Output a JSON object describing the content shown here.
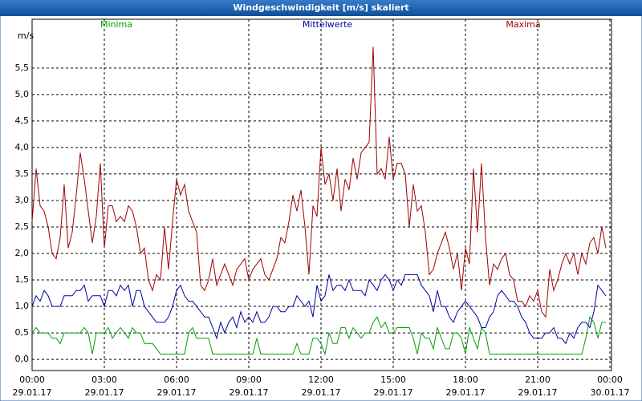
{
  "chart_data": {
    "type": "line",
    "title": "Windgeschwindigkeit [m/s] skaliert",
    "y_label": "m/s",
    "x": [
      0,
      10,
      20,
      30,
      40,
      50,
      60,
      70,
      80,
      90,
      100,
      110,
      120,
      130,
      140,
      150,
      160,
      170,
      180,
      190,
      200,
      210,
      220,
      230,
      240,
      250,
      260,
      270,
      280,
      290,
      300,
      310,
      320,
      330,
      340,
      350,
      360,
      370,
      380,
      390,
      400,
      410,
      420,
      430,
      440,
      450,
      460,
      470,
      480,
      490,
      500,
      510,
      520,
      530,
      540,
      550,
      560,
      570,
      580,
      590,
      600,
      610,
      620,
      630,
      640,
      650,
      660,
      670,
      680,
      690,
      700,
      710,
      720,
      730,
      740,
      750,
      760,
      770,
      780,
      790,
      800,
      810,
      820,
      830,
      840,
      850,
      860,
      870,
      880,
      890,
      900,
      910,
      920,
      930,
      940,
      950,
      960,
      970,
      980,
      990,
      1000,
      1010,
      1020,
      1030,
      1040,
      1050,
      1060,
      1070,
      1080,
      1090,
      1100,
      1110,
      1120,
      1130,
      1140,
      1150,
      1160,
      1170,
      1180,
      1190,
      1200,
      1210,
      1220,
      1230,
      1240,
      1250,
      1260,
      1270,
      1280,
      1290,
      1300,
      1310,
      1320,
      1330,
      1340,
      1350,
      1360,
      1370,
      1380,
      1390,
      1400,
      1410,
      1420,
      1430
    ],
    "series": [
      {
        "name": "Minima",
        "color": "#00a000",
        "values": [
          0.5,
          0.6,
          0.5,
          0.5,
          0.5,
          0.4,
          0.4,
          0.3,
          0.5,
          0.5,
          0.5,
          0.5,
          0.5,
          0.6,
          0.5,
          0.1,
          0.5,
          0.5,
          0.5,
          0.6,
          0.4,
          0.5,
          0.6,
          0.5,
          0.4,
          0.6,
          0.5,
          0.5,
          0.3,
          0.3,
          0.3,
          0.2,
          0.1,
          0.1,
          0.1,
          0.1,
          0.1,
          0.1,
          0.1,
          0.5,
          0.6,
          0.4,
          0.4,
          0.4,
          0.4,
          0.1,
          0.1,
          0.1,
          0.1,
          0.1,
          0.1,
          0.1,
          0.1,
          0.1,
          0.1,
          0.1,
          0.4,
          0.1,
          0.1,
          0.1,
          0.1,
          0.1,
          0.1,
          0.1,
          0.1,
          0.1,
          0.3,
          0.1,
          0.1,
          0.1,
          0.4,
          0.4,
          0.3,
          0.1,
          0.5,
          0.3,
          0.3,
          0.6,
          0.6,
          0.4,
          0.6,
          0.5,
          0.4,
          0.5,
          0.5,
          0.7,
          0.8,
          0.6,
          0.7,
          0.5,
          0.5,
          0.6,
          0.6,
          0.6,
          0.6,
          0.4,
          0.1,
          0.5,
          0.4,
          0.4,
          0.2,
          0.6,
          0.4,
          0.2,
          0.2,
          0.5,
          0.5,
          0.4,
          0.1,
          0.6,
          0.4,
          0.2,
          0.6,
          0.5,
          0.1,
          0.1,
          0.1,
          0.1,
          0.1,
          0.1,
          0.1,
          0.1,
          0.1,
          0.1,
          0.1,
          0.1,
          0.1,
          0.1,
          0.1,
          0.1,
          0.1,
          0.1,
          0.1,
          0.1,
          0.1,
          0.1,
          0.1,
          0.1,
          0.4,
          0.8,
          0.7,
          0.4,
          0.7,
          0.7
        ]
      },
      {
        "name": "Mittelwerte",
        "color": "#0000a0",
        "values": [
          1.0,
          1.2,
          1.1,
          1.3,
          1.2,
          1.0,
          1.0,
          1.0,
          1.2,
          1.2,
          1.2,
          1.3,
          1.3,
          1.4,
          1.1,
          1.2,
          1.2,
          1.2,
          1.0,
          1.3,
          1.3,
          1.2,
          1.4,
          1.3,
          1.4,
          1.0,
          1.3,
          1.3,
          1.0,
          0.9,
          0.8,
          0.7,
          0.7,
          0.7,
          0.8,
          1.0,
          1.3,
          1.4,
          1.2,
          1.1,
          1.1,
          1.0,
          0.9,
          0.8,
          0.8,
          0.6,
          0.4,
          0.7,
          0.5,
          0.7,
          0.8,
          0.6,
          0.9,
          0.7,
          0.8,
          0.7,
          0.9,
          0.7,
          0.7,
          0.8,
          1.0,
          1.0,
          0.9,
          0.9,
          1.0,
          1.0,
          1.2,
          1.1,
          1.0,
          1.1,
          0.8,
          1.4,
          1.1,
          1.2,
          1.6,
          1.3,
          1.4,
          1.4,
          1.3,
          1.5,
          1.3,
          1.3,
          1.3,
          1.2,
          1.5,
          1.4,
          1.3,
          1.5,
          1.6,
          1.5,
          1.3,
          1.5,
          1.4,
          1.6,
          1.6,
          1.6,
          1.6,
          1.4,
          1.3,
          1.2,
          0.9,
          1.3,
          1.0,
          1.0,
          0.8,
          0.7,
          0.9,
          1.0,
          1.1,
          1.0,
          0.9,
          0.8,
          0.6,
          0.6,
          0.8,
          0.9,
          1.2,
          1.3,
          1.2,
          1.1,
          1.1,
          1.0,
          0.8,
          0.7,
          0.5,
          0.4,
          0.4,
          0.4,
          0.5,
          0.5,
          0.6,
          0.4,
          0.4,
          0.3,
          0.5,
          0.4,
          0.6,
          0.7,
          0.7,
          0.6,
          0.9,
          1.4,
          1.3,
          1.2
        ]
      },
      {
        "name": "Maxima",
        "color": "#a00000",
        "values": [
          2.6,
          3.6,
          2.9,
          2.8,
          2.5,
          2.0,
          1.9,
          2.3,
          3.3,
          2.1,
          2.4,
          3.1,
          3.9,
          3.4,
          2.8,
          2.2,
          2.7,
          3.7,
          2.1,
          2.9,
          2.9,
          2.6,
          2.7,
          2.6,
          2.9,
          2.8,
          2.5,
          2.0,
          2.1,
          1.5,
          1.3,
          1.6,
          1.5,
          2.5,
          1.7,
          2.6,
          3.4,
          3.1,
          3.3,
          2.8,
          2.6,
          2.4,
          1.4,
          1.3,
          1.5,
          1.9,
          1.4,
          1.6,
          1.8,
          1.6,
          1.4,
          1.7,
          1.8,
          1.9,
          1.5,
          1.7,
          1.8,
          1.9,
          1.6,
          1.5,
          1.7,
          1.9,
          2.3,
          2.2,
          2.6,
          3.1,
          2.8,
          3.2,
          2.5,
          1.6,
          2.9,
          2.7,
          4.0,
          3.3,
          3.5,
          3.0,
          3.6,
          2.8,
          3.4,
          3.2,
          3.8,
          3.4,
          3.9,
          4.0,
          4.1,
          5.9,
          3.5,
          3.6,
          3.4,
          4.2,
          3.4,
          3.7,
          3.7,
          3.5,
          2.5,
          3.3,
          2.8,
          2.9,
          2.4,
          1.6,
          1.7,
          2.0,
          2.2,
          2.4,
          2.1,
          1.7,
          2.0,
          1.3,
          2.1,
          1.8,
          3.6,
          2.4,
          3.7,
          2.3,
          1.4,
          1.8,
          1.7,
          1.9,
          2.0,
          1.6,
          1.5,
          1.1,
          1.1,
          1.0,
          1.2,
          1.1,
          1.3,
          0.9,
          0.8,
          1.7,
          1.3,
          1.5,
          1.8,
          2.0,
          1.8,
          2.0,
          1.6,
          2.0,
          1.8,
          2.2,
          2.3,
          2.0,
          2.5,
          2.1
        ]
      }
    ],
    "xlim": [
      0,
      1440
    ],
    "xticks": [
      {
        "value": 0,
        "label": "00:00"
      },
      {
        "value": 180,
        "label": "03:00"
      },
      {
        "value": 360,
        "label": "06:00"
      },
      {
        "value": 540,
        "label": "09:00"
      },
      {
        "value": 720,
        "label": "12:00"
      },
      {
        "value": 900,
        "label": "15:00"
      },
      {
        "value": 1080,
        "label": "18:00"
      },
      {
        "value": 1260,
        "label": "21:00"
      },
      {
        "value": 1440,
        "label": "00:00"
      }
    ],
    "xtick_dates": [
      "29.01.17",
      "29.01.17",
      "29.01.17",
      "29.01.17",
      "29.01.17",
      "29.01.17",
      "29.01.17",
      "29.01.17",
      "30.01.17"
    ],
    "ylim": [
      -0.18,
      6.33
    ],
    "yticks": [
      {
        "value": 0,
        "label": "0,0"
      },
      {
        "value": 0.5,
        "label": "0,5"
      },
      {
        "value": 1,
        "label": "1,0"
      },
      {
        "value": 1.5,
        "label": "1,5"
      },
      {
        "value": 2,
        "label": "2,0"
      },
      {
        "value": 2.5,
        "label": "2,5"
      },
      {
        "value": 3,
        "label": "3,0"
      },
      {
        "value": 3.5,
        "label": "3,5"
      },
      {
        "value": 4,
        "label": "4,0"
      },
      {
        "value": 4.5,
        "label": "4,5"
      },
      {
        "value": 5,
        "label": "5,0"
      },
      {
        "value": 5.5,
        "label": "5,5"
      }
    ],
    "grid": true
  }
}
